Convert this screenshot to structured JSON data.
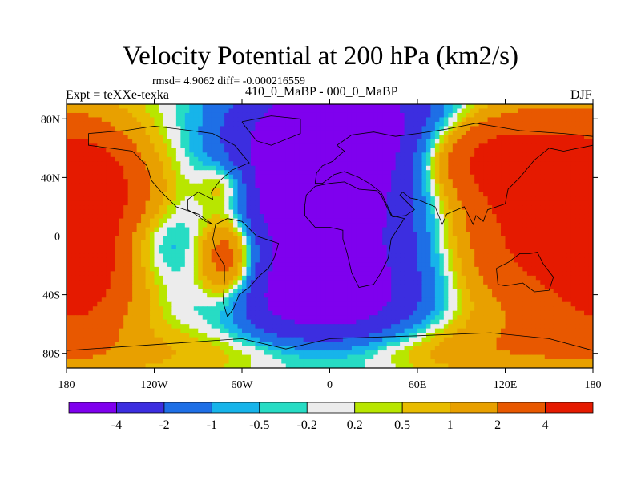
{
  "title": "Velocity Potential at 200 hPa (km2/s)",
  "stats": "rmsd= 4.9062 diff= -0.000216559",
  "left_label": "Expt = teXXe-texka",
  "center_label": "410_0_MaBP - 000_0_MaBP",
  "right_label": "DJF",
  "axes": {
    "x_ticks": [
      {
        "lon": -180,
        "label": "180"
      },
      {
        "lon": -120,
        "label": "120W"
      },
      {
        "lon": -60,
        "label": "60W"
      },
      {
        "lon": 0,
        "label": "0"
      },
      {
        "lon": 60,
        "label": "60E"
      },
      {
        "lon": 120,
        "label": "120E"
      },
      {
        "lon": 180,
        "label": "180"
      }
    ],
    "y_ticks": [
      {
        "lat": 80,
        "label": "80N"
      },
      {
        "lat": 40,
        "label": "40N"
      },
      {
        "lat": 0,
        "label": "0"
      },
      {
        "lat": -40,
        "label": "40S"
      },
      {
        "lat": -80,
        "label": "80S"
      }
    ],
    "lon_range": [
      -180,
      180
    ],
    "lat_range": [
      -90,
      90
    ]
  },
  "colorbar": {
    "colors": [
      "#7f00ee",
      "#3c2ee0",
      "#1e6fe6",
      "#17b4ea",
      "#27dcc4",
      "#ececec",
      "#b8e600",
      "#e8bc00",
      "#e8a000",
      "#e85800",
      "#e51a00"
    ],
    "boundary_labels": [
      "-4",
      "-2",
      "-1",
      "-0.5",
      "-0.2",
      "0.2",
      "0.5",
      "1",
      "2",
      "4"
    ]
  },
  "chart_data": {
    "type": "heatmap",
    "title": "Velocity Potential at 200 hPa (km2/s)",
    "units": "km2/s",
    "levels": [
      -4,
      -2,
      -1,
      -0.5,
      -0.2,
      0.2,
      0.5,
      1,
      2,
      4
    ],
    "x_range": [
      -180,
      180
    ],
    "y_range": [
      -90,
      90
    ],
    "centers": [
      {
        "lon": 10,
        "lat": 20,
        "value": -5.5,
        "sx": 55,
        "sy": 70
      },
      {
        "lon": 10,
        "lat": 70,
        "value": -3.5,
        "sx": 50,
        "sy": 25
      },
      {
        "lon": -10,
        "lat": -45,
        "value": -3.0,
        "sx": 45,
        "sy": 22
      },
      {
        "lon": -35,
        "lat": 30,
        "value": -1.8,
        "sx": 20,
        "sy": 25
      },
      {
        "lon": -120,
        "lat": -5,
        "value": -1.6,
        "sx": 25,
        "sy": 18
      },
      {
        "lon": 150,
        "lat": 10,
        "value": 5.5,
        "sx": 60,
        "sy": 50
      },
      {
        "lon": 100,
        "lat": 55,
        "value": 3.5,
        "sx": 40,
        "sy": 20
      },
      {
        "lon": -165,
        "lat": 35,
        "value": 3.0,
        "sx": 25,
        "sy": 25
      },
      {
        "lon": -170,
        "lat": -25,
        "value": 3.0,
        "sx": 22,
        "sy": 30
      },
      {
        "lon": -70,
        "lat": -15,
        "value": 4.5,
        "sx": 15,
        "sy": 22
      },
      {
        "lon": -70,
        "lat": 35,
        "value": 2.0,
        "sx": 14,
        "sy": 12
      },
      {
        "lon": -60,
        "lat": -80,
        "value": 1.0,
        "sx": 90,
        "sy": 15
      },
      {
        "lon": 60,
        "lat": -78,
        "value": 1.5,
        "sx": 80,
        "sy": 15
      }
    ],
    "continent_outlines": [
      {
        "name": "north-america",
        "points": [
          [
            -165,
            70
          ],
          [
            -140,
            72
          ],
          [
            -120,
            75
          ],
          [
            -95,
            72
          ],
          [
            -80,
            70
          ],
          [
            -65,
            62
          ],
          [
            -55,
            50
          ],
          [
            -67,
            45
          ],
          [
            -75,
            38
          ],
          [
            -81,
            30
          ],
          [
            -80,
            25
          ],
          [
            -90,
            30
          ],
          [
            -97,
            25
          ],
          [
            -97,
            18
          ],
          [
            -92,
            15
          ],
          [
            -85,
            10
          ],
          [
            -80,
            8
          ],
          [
            -90,
            15
          ],
          [
            -105,
            20
          ],
          [
            -115,
            30
          ],
          [
            -122,
            38
          ],
          [
            -125,
            48
          ],
          [
            -135,
            58
          ],
          [
            -150,
            60
          ],
          [
            -165,
            62
          ],
          [
            -165,
            70
          ]
        ]
      },
      {
        "name": "greenland",
        "points": [
          [
            -60,
            78
          ],
          [
            -40,
            82
          ],
          [
            -20,
            80
          ],
          [
            -20,
            70
          ],
          [
            -40,
            62
          ],
          [
            -50,
            65
          ],
          [
            -58,
            75
          ],
          [
            -60,
            78
          ]
        ]
      },
      {
        "name": "south-america",
        "points": [
          [
            -78,
            8
          ],
          [
            -70,
            12
          ],
          [
            -60,
            10
          ],
          [
            -50,
            0
          ],
          [
            -35,
            -5
          ],
          [
            -38,
            -15
          ],
          [
            -42,
            -22
          ],
          [
            -48,
            -27
          ],
          [
            -55,
            -35
          ],
          [
            -62,
            -40
          ],
          [
            -66,
            -50
          ],
          [
            -70,
            -55
          ],
          [
            -73,
            -45
          ],
          [
            -72,
            -30
          ],
          [
            -72,
            -20
          ],
          [
            -78,
            -10
          ],
          [
            -80,
            -2
          ],
          [
            -78,
            8
          ]
        ]
      },
      {
        "name": "eurasia",
        "points": [
          [
            -10,
            36
          ],
          [
            -9,
            43
          ],
          [
            -5,
            48
          ],
          [
            2,
            51
          ],
          [
            5,
            54
          ],
          [
            10,
            58
          ],
          [
            5,
            62
          ],
          [
            15,
            69
          ],
          [
            30,
            71
          ],
          [
            45,
            68
          ],
          [
            60,
            70
          ],
          [
            80,
            73
          ],
          [
            100,
            77
          ],
          [
            130,
            72
          ],
          [
            160,
            70
          ],
          [
            180,
            68
          ],
          [
            180,
            62
          ],
          [
            160,
            58
          ],
          [
            150,
            60
          ],
          [
            140,
            52
          ],
          [
            130,
            40
          ],
          [
            122,
            32
          ],
          [
            120,
            22
          ],
          [
            108,
            18
          ],
          [
            105,
            10
          ],
          [
            100,
            14
          ],
          [
            98,
            8
          ],
          [
            92,
            20
          ],
          [
            80,
            15
          ],
          [
            77,
            8
          ],
          [
            72,
            20
          ],
          [
            60,
            25
          ],
          [
            55,
            26
          ],
          [
            50,
            30
          ],
          [
            48,
            28
          ],
          [
            58,
            18
          ],
          [
            52,
            14
          ],
          [
            43,
            13
          ],
          [
            35,
            30
          ],
          [
            27,
            36
          ],
          [
            20,
            40
          ],
          [
            15,
            42
          ],
          [
            10,
            44
          ],
          [
            3,
            42
          ],
          [
            -5,
            36
          ],
          [
            -10,
            36
          ]
        ]
      },
      {
        "name": "africa",
        "points": [
          [
            -17,
            21
          ],
          [
            -16,
            28
          ],
          [
            -10,
            34
          ],
          [
            0,
            36
          ],
          [
            10,
            37
          ],
          [
            20,
            32
          ],
          [
            32,
            31
          ],
          [
            35,
            28
          ],
          [
            42,
            14
          ],
          [
            51,
            12
          ],
          [
            42,
            -2
          ],
          [
            40,
            -15
          ],
          [
            35,
            -25
          ],
          [
            30,
            -33
          ],
          [
            20,
            -35
          ],
          [
            15,
            -25
          ],
          [
            12,
            -12
          ],
          [
            9,
            -2
          ],
          [
            9,
            4
          ],
          [
            0,
            6
          ],
          [
            -10,
            6
          ],
          [
            -17,
            14
          ],
          [
            -17,
            21
          ]
        ]
      },
      {
        "name": "australia",
        "points": [
          [
            114,
            -22
          ],
          [
            122,
            -18
          ],
          [
            130,
            -12
          ],
          [
            137,
            -12
          ],
          [
            142,
            -11
          ],
          [
            146,
            -19
          ],
          [
            153,
            -28
          ],
          [
            150,
            -37
          ],
          [
            140,
            -38
          ],
          [
            132,
            -32
          ],
          [
            120,
            -34
          ],
          [
            115,
            -33
          ],
          [
            114,
            -22
          ]
        ]
      },
      {
        "name": "antarctica",
        "points": [
          [
            -180,
            -78
          ],
          [
            -120,
            -74
          ],
          [
            -60,
            -70
          ],
          [
            -30,
            -77
          ],
          [
            0,
            -70
          ],
          [
            60,
            -68
          ],
          [
            110,
            -66
          ],
          [
            150,
            -70
          ],
          [
            180,
            -78
          ]
        ]
      }
    ]
  }
}
